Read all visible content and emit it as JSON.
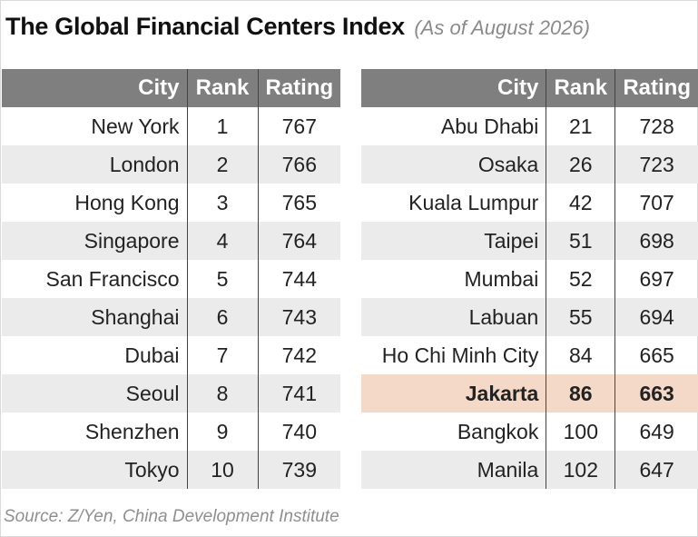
{
  "title": "The Global Financial Centers Index",
  "subtitle": "(As of August 2026)",
  "source": "Source: Z/Yen, China Development Institute",
  "headers": {
    "city": "City",
    "rank": "Rank",
    "rating": "Rating"
  },
  "colors": {
    "header_bg": "#7f7f7f",
    "row_shade": "#ebebeb",
    "highlight": "#f4d9c8"
  },
  "chart_data": {
    "type": "table",
    "title": "The Global Financial Centers Index",
    "subtitle": "(As of August 2026)",
    "columns": [
      "City",
      "Rank",
      "Rating"
    ],
    "left_rows": [
      {
        "city": "New York",
        "rank": "1",
        "rating": "767"
      },
      {
        "city": "London",
        "rank": "2",
        "rating": "766"
      },
      {
        "city": "Hong Kong",
        "rank": "3",
        "rating": "765"
      },
      {
        "city": "Singapore",
        "rank": "4",
        "rating": "764"
      },
      {
        "city": "San Francisco",
        "rank": "5",
        "rating": "744"
      },
      {
        "city": "Shanghai",
        "rank": "6",
        "rating": "743"
      },
      {
        "city": "Dubai",
        "rank": "7",
        "rating": "742"
      },
      {
        "city": "Seoul",
        "rank": "8",
        "rating": "741"
      },
      {
        "city": "Shenzhen",
        "rank": "9",
        "rating": "740"
      },
      {
        "city": "Tokyo",
        "rank": "10",
        "rating": "739"
      }
    ],
    "right_rows": [
      {
        "city": "Abu Dhabi",
        "rank": "21",
        "rating": "728"
      },
      {
        "city": "Osaka",
        "rank": "26",
        "rating": "723"
      },
      {
        "city": "Kuala Lumpur",
        "rank": "42",
        "rating": "707"
      },
      {
        "city": "Taipei",
        "rank": "51",
        "rating": "698"
      },
      {
        "city": "Mumbai",
        "rank": "52",
        "rating": "697"
      },
      {
        "city": "Labuan",
        "rank": "55",
        "rating": "694"
      },
      {
        "city": "Ho Chi Minh City",
        "rank": "84",
        "rating": "665"
      },
      {
        "city": "Jakarta",
        "rank": "86",
        "rating": "663",
        "highlighted": true
      },
      {
        "city": "Bangkok",
        "rank": "100",
        "rating": "649"
      },
      {
        "city": "Manila",
        "rank": "102",
        "rating": "647"
      }
    ]
  }
}
